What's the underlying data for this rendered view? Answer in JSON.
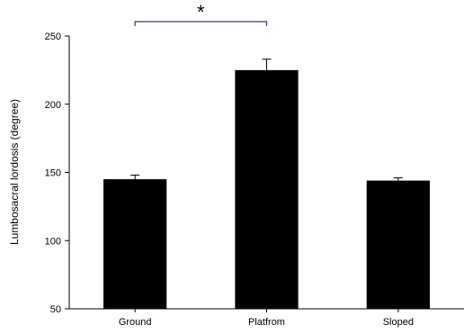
{
  "chart_data": {
    "type": "bar",
    "title": "",
    "xlabel": "",
    "ylabel": "Lumbosacral lordosis (degree)",
    "categories": [
      "Ground",
      "Platfrom",
      "Sloped"
    ],
    "values": [
      145,
      225,
      144
    ],
    "errors": [
      3,
      8,
      2
    ],
    "ylim": [
      50,
      250
    ],
    "yticks": [
      50,
      100,
      150,
      200,
      250
    ],
    "grid": false,
    "legend": "none",
    "bar_color": "#000000",
    "significance": {
      "from": "Ground",
      "to": "Platfrom",
      "label": "*",
      "bracket_color": "#2f3c78"
    }
  }
}
